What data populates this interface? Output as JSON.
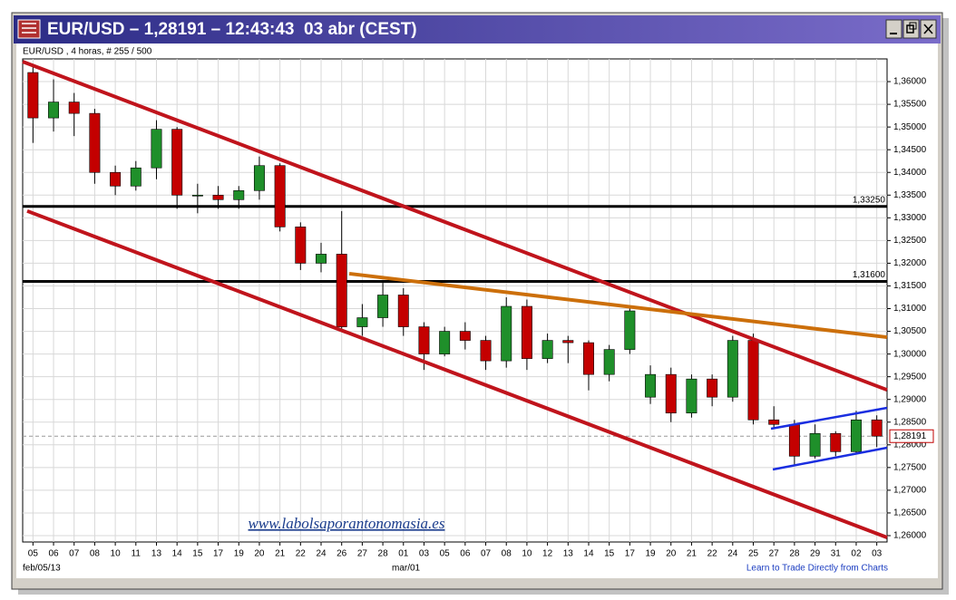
{
  "window": {
    "title": "EUR/USD – 1,28191 – 12:43:43  03 abr (CEST)"
  },
  "chart_data": {
    "type": "candlestick",
    "subtitle": "EUR/USD , 4 horas, # 255 / 500",
    "categories": [
      "05",
      "06",
      "07",
      "08",
      "10",
      "11",
      "13",
      "14",
      "15",
      "17",
      "19",
      "20",
      "21",
      "22",
      "24",
      "26",
      "27",
      "28",
      "01",
      "03",
      "05",
      "06",
      "07",
      "08",
      "10",
      "12",
      "13",
      "14",
      "15",
      "17",
      "19",
      "20",
      "21",
      "22",
      "24",
      "25",
      "27",
      "28",
      "29",
      "31",
      "02",
      "03"
    ],
    "open": [
      1.362,
      1.352,
      1.3555,
      1.353,
      1.34,
      1.337,
      1.341,
      1.3495,
      1.335,
      1.335,
      1.334,
      1.336,
      1.3415,
      1.328,
      1.32,
      1.322,
      1.306,
      1.308,
      1.313,
      1.306,
      1.3,
      1.305,
      1.303,
      1.2985,
      1.3105,
      1.299,
      1.303,
      1.3025,
      1.2955,
      1.301,
      1.2905,
      1.2955,
      1.287,
      1.2945,
      1.2905,
      1.303,
      1.2855,
      1.2845,
      1.2775,
      1.2825,
      1.2785,
      1.2855
    ],
    "high": [
      1.3635,
      1.3605,
      1.3575,
      1.354,
      1.3415,
      1.3425,
      1.3515,
      1.35,
      1.3375,
      1.337,
      1.337,
      1.3435,
      1.342,
      1.329,
      1.3245,
      1.3315,
      1.311,
      1.316,
      1.3145,
      1.307,
      1.306,
      1.307,
      1.304,
      1.3125,
      1.312,
      1.3045,
      1.304,
      1.303,
      1.302,
      1.3105,
      1.2975,
      1.297,
      1.2955,
      1.2955,
      1.304,
      1.3045,
      1.2885,
      1.2855,
      1.2845,
      1.283,
      1.2875,
      1.2865
    ],
    "low": [
      1.3465,
      1.349,
      1.348,
      1.3375,
      1.335,
      1.336,
      1.3385,
      1.332,
      1.331,
      1.332,
      1.332,
      1.334,
      1.327,
      1.3185,
      1.318,
      1.305,
      1.304,
      1.306,
      1.304,
      1.2965,
      1.2995,
      1.301,
      1.2965,
      1.297,
      1.2965,
      1.298,
      1.298,
      1.292,
      1.294,
      1.3,
      1.289,
      1.285,
      1.286,
      1.2885,
      1.2895,
      1.2845,
      1.2835,
      1.2755,
      1.277,
      1.2775,
      1.278,
      1.2795
    ],
    "close": [
      1.352,
      1.3555,
      1.353,
      1.34,
      1.337,
      1.341,
      1.3495,
      1.335,
      1.335,
      1.334,
      1.336,
      1.3415,
      1.328,
      1.32,
      1.322,
      1.306,
      1.308,
      1.313,
      1.306,
      1.3,
      1.305,
      1.303,
      1.2985,
      1.3105,
      1.299,
      1.303,
      1.3025,
      1.2955,
      1.301,
      1.3095,
      1.2955,
      1.287,
      1.2945,
      1.2905,
      1.303,
      1.2855,
      1.2845,
      1.2775,
      1.2825,
      1.2785,
      1.2855,
      1.28191
    ],
    "up_color": "#1f8f2a",
    "down_color": "#c40000",
    "ylim": [
      1.2586,
      1.365
    ],
    "yticks": [
      {
        "value": 1.26,
        "label": "1,26000"
      },
      {
        "value": 1.265,
        "label": "1,26500"
      },
      {
        "value": 1.27,
        "label": "1,27000"
      },
      {
        "value": 1.275,
        "label": "1,27500"
      },
      {
        "value": 1.28,
        "label": "1,28000"
      },
      {
        "value": 1.285,
        "label": "1,28500"
      },
      {
        "value": 1.29,
        "label": "1,29000"
      },
      {
        "value": 1.295,
        "label": "1,29500"
      },
      {
        "value": 1.3,
        "label": "1,30000"
      },
      {
        "value": 1.305,
        "label": "1,30500"
      },
      {
        "value": 1.31,
        "label": "1,31000"
      },
      {
        "value": 1.315,
        "label": "1,31500"
      },
      {
        "value": 1.32,
        "label": "1,32000"
      },
      {
        "value": 1.325,
        "label": "1,32500"
      },
      {
        "value": 1.33,
        "label": "1,33000"
      },
      {
        "value": 1.335,
        "label": "1,33500"
      },
      {
        "value": 1.34,
        "label": "1,34000"
      },
      {
        "value": 1.345,
        "label": "1,34500"
      },
      {
        "value": 1.35,
        "label": "1,35000"
      },
      {
        "value": 1.355,
        "label": "1,35500"
      },
      {
        "value": 1.36,
        "label": "1,36000"
      }
    ],
    "grid": true,
    "date_labels": [
      "feb/05/13",
      "mar/01"
    ],
    "levels": [
      {
        "value": 1.3325,
        "label": "1,33250"
      },
      {
        "value": 1.316,
        "label": "1,31600"
      }
    ],
    "last": {
      "value": 1.28191,
      "label": "1,28191"
    },
    "trendlines": [
      {
        "x": [
          -0.5,
          41.5
        ],
        "y": [
          1.3644,
          1.2921
        ],
        "color": "#c0141c"
      },
      {
        "x": [
          -0.28,
          41.5
        ],
        "y": [
          1.3315,
          1.2596
        ],
        "color": "#c0141c"
      },
      {
        "x": [
          15.37,
          41.5
        ],
        "y": [
          1.3177,
          1.3037
        ],
        "color": "#cc6f0a"
      },
      {
        "x": [
          35.86,
          41.5
        ],
        "y": [
          1.28355,
          1.28815
        ],
        "color": "#1a2ee0"
      },
      {
        "x": [
          35.95,
          41.5
        ],
        "y": [
          1.27457,
          1.27936
        ],
        "color": "#1a2ee0"
      }
    ],
    "watermark": "www.labolsaporantonomasia.es",
    "footer_link": "Learn to Trade Directly from Charts"
  }
}
